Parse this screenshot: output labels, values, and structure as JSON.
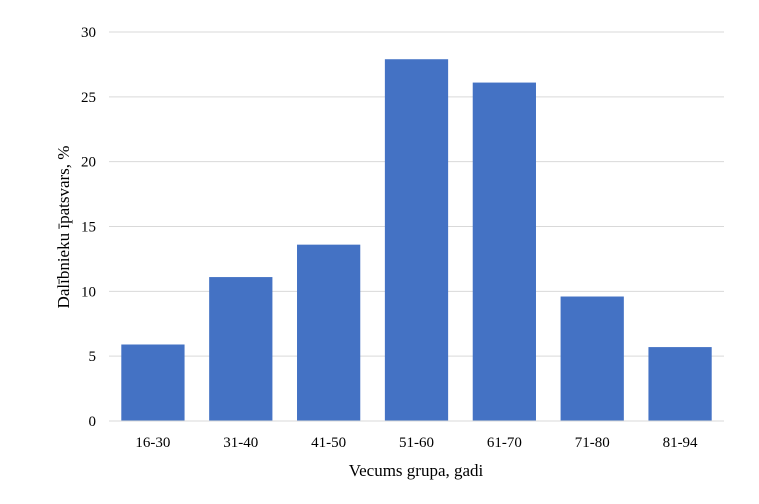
{
  "chart_data": {
    "type": "bar",
    "title": "",
    "xlabel": "Vecums grupa, gadi",
    "ylabel": "Dalībnieku īpatsvars, %",
    "categories": [
      "16-30",
      "31-40",
      "41-50",
      "51-60",
      "61-70",
      "71-80",
      "81-94"
    ],
    "values": [
      5.9,
      11.1,
      13.6,
      27.9,
      26.1,
      9.6,
      5.7
    ],
    "ylim": [
      0,
      30
    ],
    "yticks": [
      "0",
      "5",
      "10",
      "15",
      "20",
      "25",
      "30"
    ],
    "grid": true,
    "legend": "none",
    "bar_color": "#4472C4",
    "grid_color": "#D9D9D9"
  }
}
